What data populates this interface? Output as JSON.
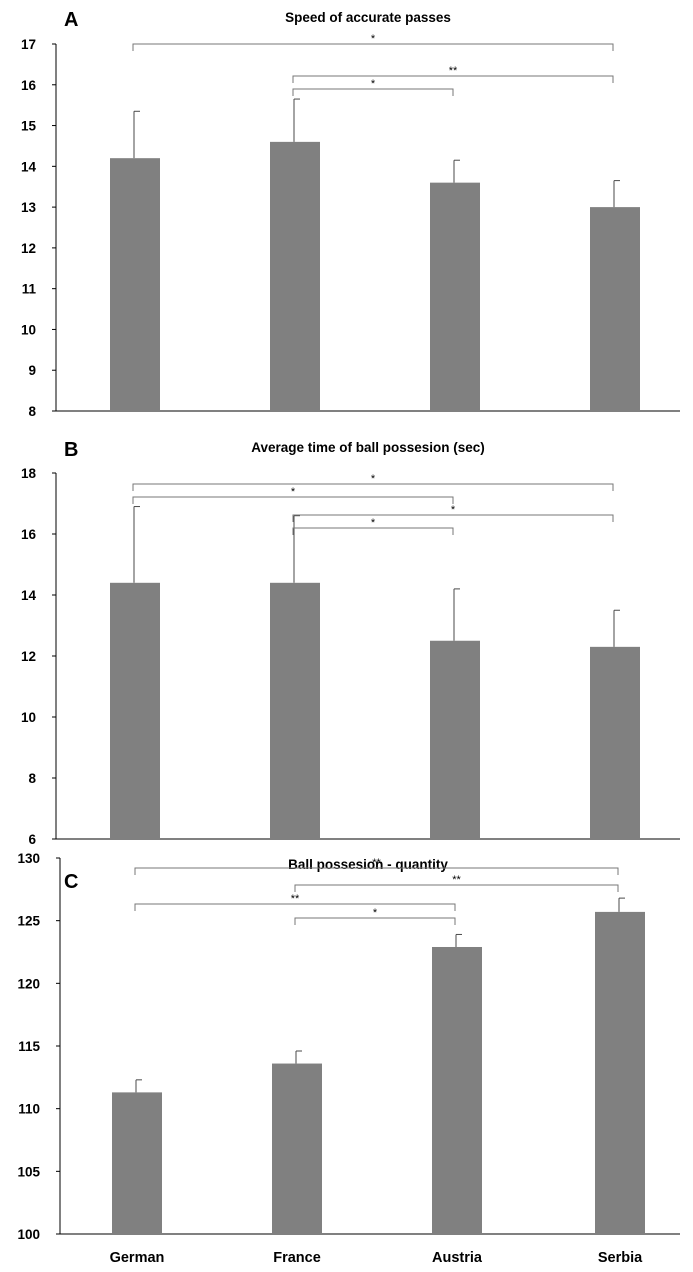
{
  "colors": {
    "bar": "#808080",
    "axis": "#000000",
    "bracket": "#777777",
    "error_bar": "#4a4a4a"
  },
  "chart_data": [
    {
      "type": "bar",
      "panel": "A",
      "title": "Speed of accurate passes",
      "xlabel": "",
      "ylabel": "",
      "categories": [
        "German",
        "France",
        "Austria",
        "Serbia"
      ],
      "values": [
        14.2,
        14.6,
        13.6,
        13.0
      ],
      "error_plus": [
        1.15,
        1.05,
        0.55,
        0.65
      ],
      "ylim": [
        8,
        17
      ],
      "yticks": [
        8,
        9,
        10,
        11,
        12,
        13,
        14,
        15,
        16,
        17
      ],
      "show_category_labels": false,
      "grid": false,
      "significance": [
        {
          "from": 0,
          "to": 3,
          "label": "*"
        },
        {
          "from": 1,
          "to": 3,
          "label": "**"
        },
        {
          "from": 1,
          "to": 2,
          "label": "*"
        }
      ]
    },
    {
      "type": "bar",
      "panel": "B",
      "title": "Average time of ball possesion (sec)",
      "xlabel": "",
      "ylabel": "",
      "categories": [
        "German",
        "France",
        "Austria",
        "Serbia"
      ],
      "values": [
        14.4,
        14.4,
        12.5,
        12.3
      ],
      "error_plus": [
        2.5,
        2.2,
        1.7,
        1.2
      ],
      "ylim": [
        6,
        18
      ],
      "yticks": [
        6,
        8,
        10,
        12,
        14,
        16,
        18
      ],
      "show_category_labels": false,
      "grid": false,
      "significance": [
        {
          "from": 0,
          "to": 3,
          "label": "*"
        },
        {
          "from": 0,
          "to": 2,
          "label": "*"
        },
        {
          "from": 1,
          "to": 3,
          "label": "*"
        },
        {
          "from": 1,
          "to": 2,
          "label": "*"
        }
      ]
    },
    {
      "type": "bar",
      "panel": "C",
      "title": "Ball possesion - quantity",
      "xlabel": "",
      "ylabel": "",
      "categories": [
        "German",
        "France",
        "Austria",
        "Serbia"
      ],
      "values": [
        111.3,
        113.6,
        122.9,
        125.7
      ],
      "error_plus": [
        1.0,
        1.0,
        1.0,
        1.1
      ],
      "ylim": [
        100,
        130
      ],
      "yticks": [
        100,
        105,
        110,
        115,
        120,
        125,
        130
      ],
      "show_category_labels": true,
      "grid": false,
      "significance": [
        {
          "from": 0,
          "to": 3,
          "label": "**"
        },
        {
          "from": 1,
          "to": 3,
          "label": "**"
        },
        {
          "from": 0,
          "to": 2,
          "label": "**"
        },
        {
          "from": 1,
          "to": 2,
          "label": "*"
        }
      ]
    }
  ]
}
